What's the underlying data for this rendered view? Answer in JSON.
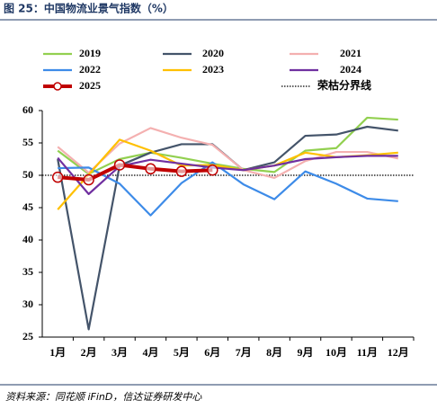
{
  "chart_data": {
    "type": "line",
    "title": "图 25：中国物流业景气指数（%）",
    "source": "资料来源：同花顺 iFinD，信达证券研发中心",
    "categories": [
      "1月",
      "2月",
      "3月",
      "4月",
      "5月",
      "6月",
      "7月",
      "8月",
      "9月",
      "10月",
      "11月",
      "12月"
    ],
    "series": [
      {
        "name": "2019",
        "color": "#92d050",
        "values": [
          53.8,
          50.2,
          52.5,
          53.5,
          52.7,
          51.8,
          51.0,
          50.5,
          53.8,
          54.2,
          58.9,
          58.6
        ]
      },
      {
        "name": "2020",
        "color": "#44546a",
        "values": [
          52.5,
          26.2,
          51.5,
          53.5,
          54.8,
          54.8,
          50.8,
          52.0,
          56.1,
          56.3,
          57.5,
          56.9
        ]
      },
      {
        "name": "2021",
        "color": "#f4b0b0",
        "values": [
          54.4,
          50.4,
          54.9,
          57.3,
          55.8,
          54.7,
          50.8,
          49.6,
          52.2,
          53.6,
          53.6,
          52.6
        ]
      },
      {
        "name": "2022",
        "color": "#3d8be8",
        "values": [
          51.1,
          51.2,
          48.7,
          43.8,
          48.8,
          52.0,
          48.6,
          46.3,
          50.6,
          48.7,
          46.4,
          46.0
        ]
      },
      {
        "name": "2023",
        "color": "#ffc000",
        "values": [
          44.7,
          50.1,
          55.5,
          53.8,
          51.5,
          51.6,
          50.8,
          51.5,
          53.5,
          52.8,
          53.1,
          53.5
        ]
      },
      {
        "name": "2024",
        "color": "#7030a0",
        "values": [
          52.7,
          47.1,
          51.4,
          52.4,
          51.8,
          51.2,
          50.8,
          51.5,
          52.5,
          52.8,
          53.0,
          53.0
        ]
      },
      {
        "name": "2025",
        "color": "#c00000",
        "markers": true,
        "values": [
          49.7,
          49.3,
          51.6,
          51.0,
          50.6,
          50.8,
          null,
          null,
          null,
          null,
          null,
          null
        ]
      }
    ],
    "reference_line": {
      "name": "荣枯分界线",
      "value": 50,
      "color": "#000000"
    },
    "ylim": [
      25,
      60
    ],
    "yticks": [
      25,
      30,
      35,
      40,
      45,
      50,
      55,
      60
    ]
  }
}
